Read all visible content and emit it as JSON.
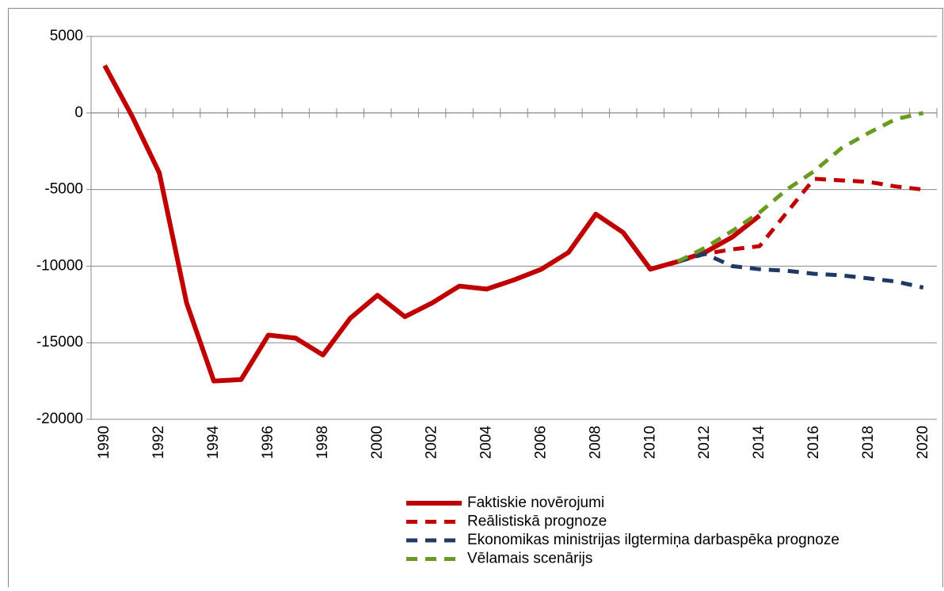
{
  "chart_data": {
    "type": "line",
    "categories": [
      "1990",
      null,
      "1992",
      null,
      "1994",
      null,
      "1996",
      null,
      "1998",
      null,
      "2000",
      null,
      "2002",
      null,
      "2004",
      null,
      "2006",
      null,
      "2008",
      null,
      "2010",
      null,
      "2012",
      null,
      "2014",
      null,
      "2016",
      null,
      "2018",
      null,
      "2020"
    ],
    "ylim": [
      -20000,
      5000
    ],
    "yticks": [
      -20000,
      -15000,
      -10000,
      -5000,
      0,
      5000
    ],
    "grid": true,
    "legend": "bottom",
    "series": [
      {
        "name": "Faktiskie novērojumi",
        "color": "#c00000",
        "style": "solid",
        "values": [
          3100,
          -200,
          -3900,
          -12400,
          -17500,
          -17400,
          -14500,
          -14700,
          -15800,
          -13400,
          -11900,
          -13300,
          -12400,
          -11300,
          -11500,
          -10900,
          -10200,
          -9100,
          -6600,
          -7800,
          -10200,
          -9700,
          -9100,
          -8100,
          -6700,
          null,
          null,
          null,
          null,
          null,
          null
        ]
      },
      {
        "name": "Reālistiskā prognoze",
        "color": "#c00000",
        "style": "dashed",
        "values": [
          null,
          null,
          null,
          null,
          null,
          null,
          null,
          null,
          null,
          null,
          null,
          null,
          null,
          null,
          null,
          null,
          null,
          null,
          null,
          null,
          null,
          -9700,
          -9200,
          -8900,
          -8700,
          -6500,
          -4300,
          -4400,
          -4500,
          -4800,
          -5000
        ]
      },
      {
        "name": "Ekonomikas ministrijas ilgtermiņa darbaspēka prognoze",
        "color": "#1f3864",
        "style": "dashed",
        "values": [
          null,
          null,
          null,
          null,
          null,
          null,
          null,
          null,
          null,
          null,
          null,
          null,
          null,
          null,
          null,
          null,
          null,
          null,
          null,
          null,
          null,
          -9700,
          -9200,
          -10000,
          -10200,
          -10300,
          -10500,
          -10600,
          -10800,
          -11000,
          -11400
        ]
      },
      {
        "name": "Vēlamais scenārijs",
        "color": "#6b9a23",
        "style": "dashed",
        "values": [
          null,
          null,
          null,
          null,
          null,
          null,
          null,
          null,
          null,
          null,
          null,
          null,
          null,
          null,
          null,
          null,
          null,
          null,
          null,
          null,
          null,
          -9700,
          -8800,
          -7700,
          -6500,
          -5000,
          -3800,
          -2300,
          -1300,
          -400,
          0
        ]
      }
    ]
  }
}
